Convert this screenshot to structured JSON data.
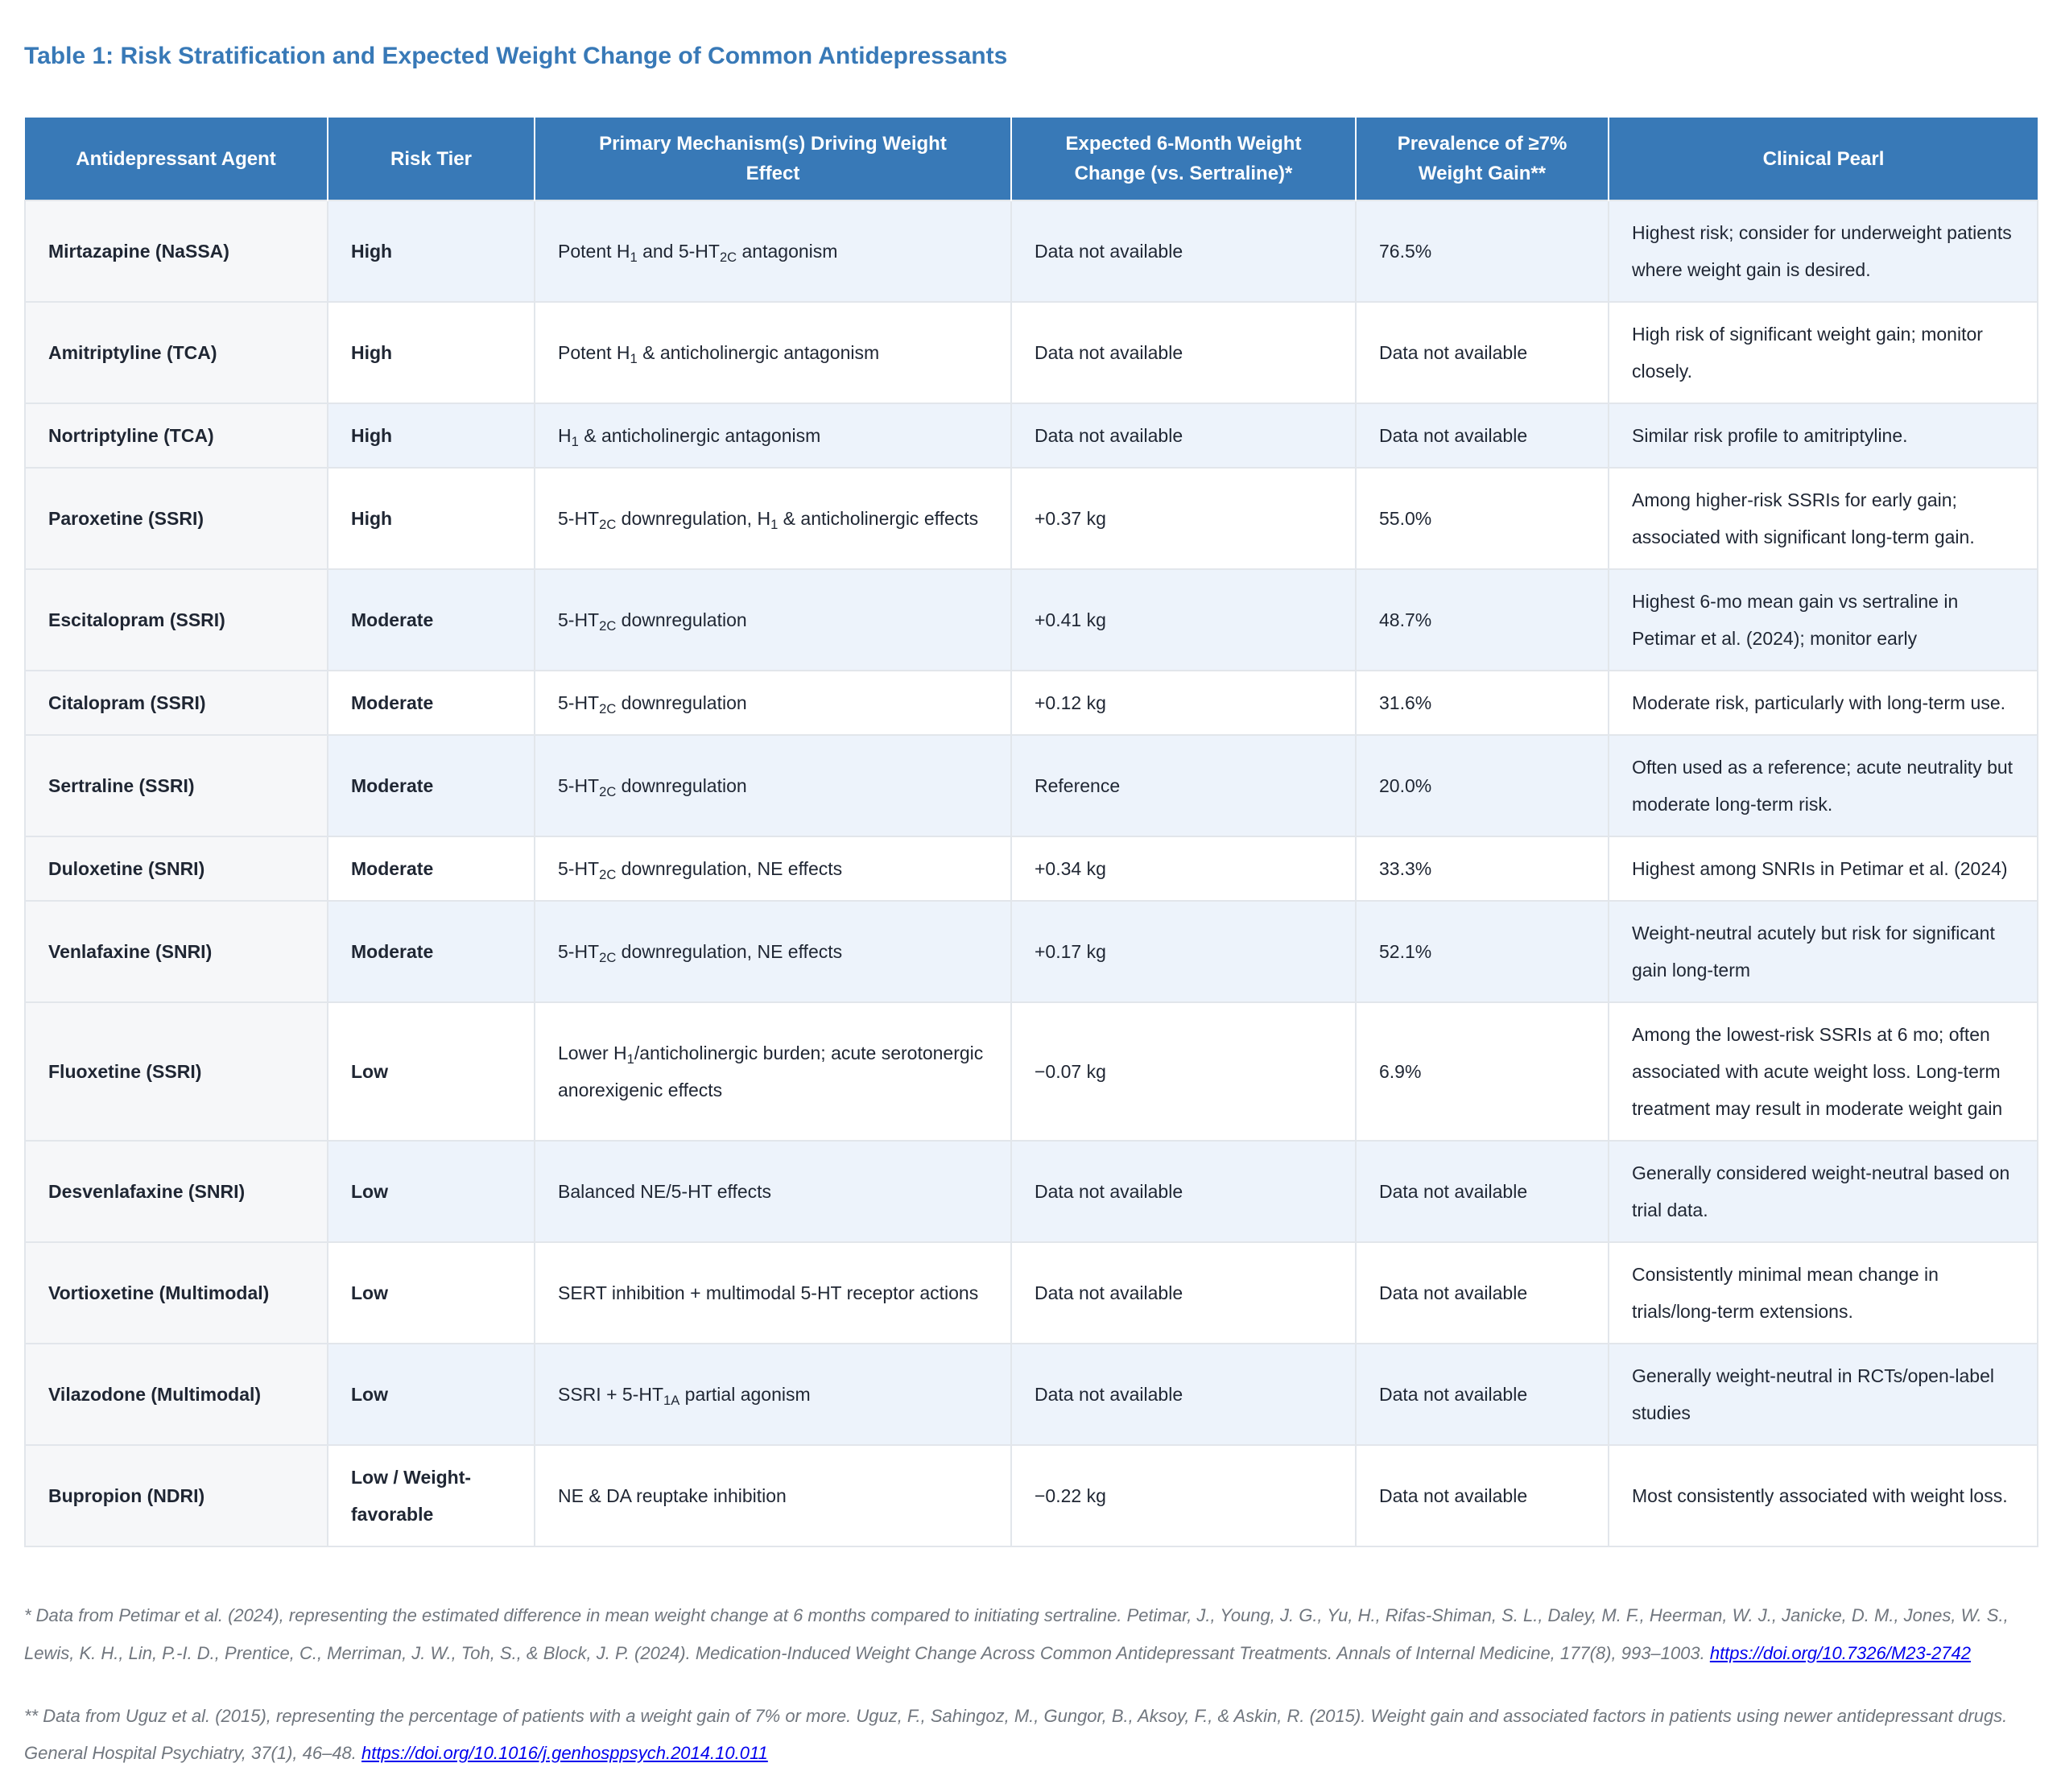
{
  "title": "Table 1: Risk Stratification and Expected Weight Change of Common Antidepressants",
  "colors": {
    "accent": "#3879B7",
    "row_alt": "#EDF3FB",
    "first_col": "#F6F7F9",
    "border": "#E2E6EB",
    "text": "#1F2633",
    "footnote": "#70767E",
    "link": "#0000EE"
  },
  "table": {
    "columns": [
      "Antidepressant Agent",
      "Risk Tier",
      "Primary Mechanism(s) Driving Weight Effect",
      "Expected 6-Month Weight Change (vs. Sertraline)*",
      "Prevalence of ≥7% Weight Gain**",
      "Clinical Pearl"
    ],
    "rows": [
      {
        "agent": "Mirtazapine (NaSSA)",
        "risk_tier": "High",
        "mechanism": [
          {
            "t": "Potent H"
          },
          {
            "s": "1"
          },
          {
            "t": " and 5-HT"
          },
          {
            "s": "2C"
          },
          {
            "t": " antagonism"
          }
        ],
        "weight_change": "Data not available",
        "prevalence": "76.5%",
        "pearl": "Highest risk; consider for underweight patients where weight gain is desired."
      },
      {
        "agent": "Amitriptyline (TCA)",
        "risk_tier": "High",
        "mechanism": [
          {
            "t": "Potent H"
          },
          {
            "s": "1"
          },
          {
            "t": " & anticholinergic antagonism"
          }
        ],
        "weight_change": "Data not available",
        "prevalence": "Data not available",
        "pearl": "High risk of significant weight gain; monitor closely."
      },
      {
        "agent": "Nortriptyline (TCA)",
        "risk_tier": "High",
        "mechanism": [
          {
            "t": "H"
          },
          {
            "s": "1"
          },
          {
            "t": " & anticholinergic antagonism"
          }
        ],
        "weight_change": "Data not available",
        "prevalence": "Data not available",
        "pearl": "Similar risk profile to amitriptyline."
      },
      {
        "agent": "Paroxetine (SSRI)",
        "risk_tier": "High",
        "mechanism": [
          {
            "t": "5-HT"
          },
          {
            "s": "2C"
          },
          {
            "t": " downregulation, H"
          },
          {
            "s": "1"
          },
          {
            "t": " & anticholinergic effects"
          }
        ],
        "weight_change": "+0.37 kg",
        "prevalence": "55.0%",
        "pearl": "Among higher-risk SSRIs for early gain; associated with significant long-term gain."
      },
      {
        "agent": "Escitalopram (SSRI)",
        "risk_tier": "Moderate",
        "mechanism": [
          {
            "t": "5-HT"
          },
          {
            "s": "2C"
          },
          {
            "t": " downregulation"
          }
        ],
        "weight_change": "+0.41 kg",
        "prevalence": "48.7%",
        "pearl": "Highest 6-mo mean gain vs sertraline in Petimar et al. (2024); monitor early"
      },
      {
        "agent": "Citalopram (SSRI)",
        "risk_tier": "Moderate",
        "mechanism": [
          {
            "t": "5-HT"
          },
          {
            "s": "2C"
          },
          {
            "t": " downregulation"
          }
        ],
        "weight_change": "+0.12 kg",
        "prevalence": "31.6%",
        "pearl": "Moderate risk, particularly with long-term use."
      },
      {
        "agent": "Sertraline (SSRI)",
        "risk_tier": "Moderate",
        "mechanism": [
          {
            "t": "5-HT"
          },
          {
            "s": "2C"
          },
          {
            "t": " downregulation"
          }
        ],
        "weight_change": "Reference",
        "prevalence": "20.0%",
        "pearl": "Often used as a reference; acute neutrality but moderate long-term risk."
      },
      {
        "agent": "Duloxetine (SNRI)",
        "risk_tier": "Moderate",
        "mechanism": [
          {
            "t": "5-HT"
          },
          {
            "s": "2C"
          },
          {
            "t": " downregulation, NE effects"
          }
        ],
        "weight_change": "+0.34 kg",
        "prevalence": "33.3%",
        "pearl": "Highest among SNRIs in Petimar et al. (2024)"
      },
      {
        "agent": "Venlafaxine (SNRI)",
        "risk_tier": "Moderate",
        "mechanism": [
          {
            "t": "5-HT"
          },
          {
            "s": "2C"
          },
          {
            "t": " downregulation, NE effects"
          }
        ],
        "weight_change": "+0.17 kg",
        "prevalence": "52.1%",
        "pearl": "Weight-neutral acutely but risk for significant gain long-term"
      },
      {
        "agent": "Fluoxetine (SSRI)",
        "risk_tier": "Low",
        "mechanism": [
          {
            "t": "Lower H"
          },
          {
            "s": "1"
          },
          {
            "t": "/anticholinergic burden; acute serotonergic anorexigenic effects"
          }
        ],
        "weight_change": "−0.07 kg",
        "prevalence": "6.9%",
        "pearl": "Among the lowest-risk SSRIs at 6 mo; often associated with acute weight loss. Long-term treatment may result in moderate weight gain"
      },
      {
        "agent": "Desvenlafaxine (SNRI)",
        "risk_tier": "Low",
        "mechanism": [
          {
            "t": "Balanced NE/5-HT effects"
          }
        ],
        "weight_change": "Data not available",
        "prevalence": "Data not available",
        "pearl": "Generally considered weight-neutral based on trial data."
      },
      {
        "agent": "Vortioxetine (Multimodal)",
        "risk_tier": "Low",
        "mechanism": [
          {
            "t": "SERT inhibition + multimodal 5-HT receptor actions"
          }
        ],
        "weight_change": "Data not available",
        "prevalence": "Data not available",
        "pearl": "Consistently minimal mean change in trials/long-term extensions."
      },
      {
        "agent": "Vilazodone (Multimodal)",
        "risk_tier": "Low",
        "mechanism": [
          {
            "t": "SSRI + 5-HT"
          },
          {
            "s": "1A"
          },
          {
            "t": " partial agonism"
          }
        ],
        "weight_change": "Data not available",
        "prevalence": "Data not available",
        "pearl": "Generally weight-neutral in RCTs/open-label studies"
      },
      {
        "agent": "Bupropion (NDRI)",
        "risk_tier": "Low / Weight-favorable",
        "mechanism": [
          {
            "t": "NE & DA reuptake inhibition"
          }
        ],
        "weight_change": "−0.22 kg",
        "prevalence": "Data not available",
        "pearl": "Most consistently associated with weight loss."
      }
    ]
  },
  "footnotes": [
    {
      "text": "* Data from Petimar et al. (2024), representing the estimated difference in mean weight change at 6 months compared to initiating sertraline. Petimar, J., Young, J. G., Yu, H., Rifas-Shiman, S. L., Daley, M. F., Heerman, W. J., Janicke, D. M., Jones, W. S., Lewis, K. H., Lin, P.-I. D., Prentice, C., Merriman, J. W., Toh, S., & Block, J. P. (2024). Medication-Induced Weight Change Across Common Antidepressant Treatments. Annals of Internal Medicine, 177(8), 993–1003. ",
      "link": "https://doi.org/10.7326/M23-2742"
    },
    {
      "text": "** Data from Uguz et al. (2015), representing the percentage of patients with a weight gain of 7% or more. Uguz, F., Sahingoz, M., Gungor, B., Aksoy, F., & Askin, R. (2015). Weight gain and associated factors in patients using newer antidepressant drugs. General Hospital Psychiatry, 37(1), 46–48. ",
      "link": "https://doi.org/10.1016/j.genhosppsych.2014.10.011"
    }
  ]
}
